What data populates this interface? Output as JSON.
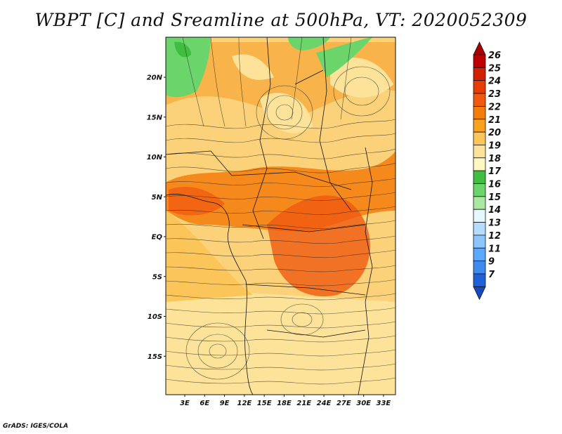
{
  "title": "WBPT [C] and Sreamline at 500hPa, VT: 2020052309",
  "credit": "GrADS: IGES/COLA",
  "map": {
    "lat_labels": [
      "20N",
      "15N",
      "10N",
      "5N",
      "EQ",
      "5S",
      "10S",
      "15S"
    ],
    "lat_values": [
      20,
      15,
      10,
      5,
      0,
      -5,
      -10,
      -15
    ],
    "lon_labels": [
      "3E",
      "6E",
      "9E",
      "12E",
      "15E",
      "18E",
      "21E",
      "24E",
      "27E",
      "30E",
      "33E"
    ],
    "lon_values": [
      3,
      6,
      9,
      12,
      15,
      18,
      21,
      24,
      27,
      30,
      33
    ],
    "lon_range": [
      0,
      35
    ],
    "lat_range": [
      -20,
      25
    ]
  },
  "colorbar": {
    "labels": [
      "26",
      "25",
      "24",
      "23",
      "22",
      "21",
      "20",
      "19",
      "18",
      "17",
      "16",
      "15",
      "14",
      "13",
      "12",
      "11",
      "9",
      "7"
    ],
    "colors": [
      "#c00000",
      "#d22000",
      "#e83c00",
      "#f05a10",
      "#f57c0a",
      "#f8a21e",
      "#fbc55a",
      "#fde39a",
      "#fff7c0",
      "#3fbe3f",
      "#6bd46b",
      "#a8e8a0",
      "#e6f8ff",
      "#b4dcff",
      "#8cc6ff",
      "#5ca8ff",
      "#3f8aef",
      "#2060d8"
    ],
    "top_color": "#a80000",
    "bottom_color": "#1648c0"
  }
}
